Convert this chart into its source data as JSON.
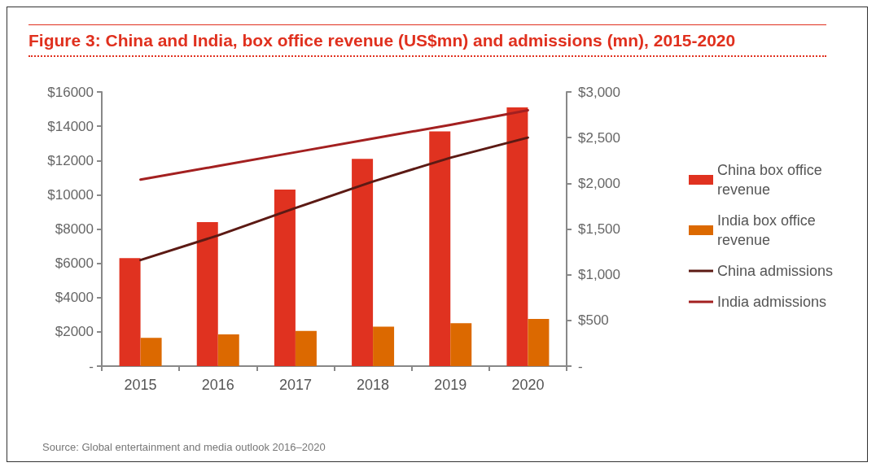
{
  "chart_data": {
    "type": "bar",
    "title": "Figure 3: China and India, box office revenue (US$mn) and admissions (mn), 2015-2020",
    "categories": [
      "2015",
      "2016",
      "2017",
      "2018",
      "2019",
      "2020"
    ],
    "series": [
      {
        "name": "China box office revenue",
        "color": "#e03220",
        "values": [
          6300,
          8400,
          10300,
          12100,
          13700,
          15100
        ]
      },
      {
        "name": "India box office revenue",
        "color": "#dc6900",
        "values": [
          1650,
          1850,
          2050,
          2300,
          2500,
          2750
        ]
      },
      {
        "name": "China admissions",
        "type": "line",
        "axis": "y2",
        "color": "#5c1a14",
        "values": [
          1160,
          1430,
          1730,
          2020,
          2280,
          2500
        ]
      },
      {
        "name": "India admissions",
        "type": "line",
        "axis": "y2",
        "color": "#a32020",
        "values": [
          2040,
          2190,
          2340,
          2490,
          2640,
          2800
        ]
      }
    ],
    "ylim": [
      0,
      16000
    ],
    "yticks": [
      {
        "value": 0,
        "label": "-"
      },
      {
        "value": 2000,
        "label": "$2000"
      },
      {
        "value": 4000,
        "label": "$4000"
      },
      {
        "value": 6000,
        "label": "$6000"
      },
      {
        "value": 8000,
        "label": "$8000"
      },
      {
        "value": 10000,
        "label": "$10000"
      },
      {
        "value": 12000,
        "label": "$12000"
      },
      {
        "value": 14000,
        "label": "$14000"
      },
      {
        "value": 16000,
        "label": "$16000"
      }
    ],
    "y2lim": [
      0,
      3000
    ],
    "y2ticks": [
      {
        "value": 0,
        "label": "-"
      },
      {
        "value": 500,
        "label": "$500"
      },
      {
        "value": 1000,
        "label": "$1,000"
      },
      {
        "value": 1500,
        "label": "$1,500"
      },
      {
        "value": 2000,
        "label": "$2,000"
      },
      {
        "value": 2500,
        "label": "$2,500"
      },
      {
        "value": 3000,
        "label": "$3,000"
      }
    ],
    "grid": false,
    "legend": "right",
    "marker": "none",
    "line_style": "solid",
    "annotations": [
      "Source: Global entertainment and media outlook 2016–2020"
    ]
  }
}
